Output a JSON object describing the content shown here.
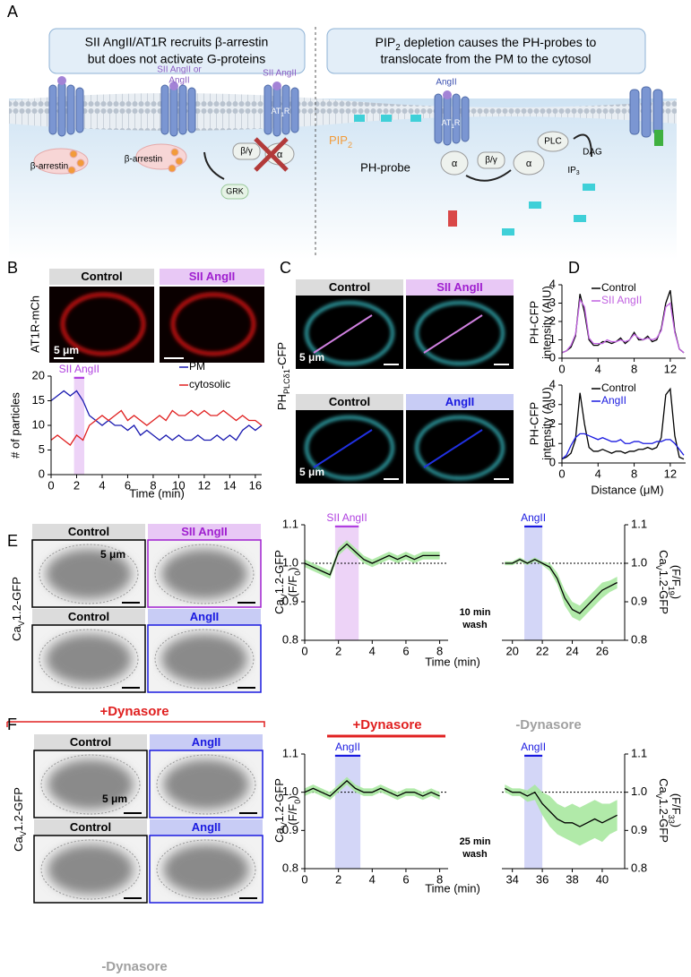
{
  "panel_letters": [
    "A",
    "B",
    "C",
    "D",
    "E",
    "F"
  ],
  "panel_a": {
    "left_title": [
      "SII AngII/AT1R recruits β-arrestin",
      "but does not activate G-proteins"
    ],
    "right_title": [
      [
        {
          "t": "PIP"
        },
        {
          "t": "2",
          "sub": true
        },
        {
          "t": " depletion causes the PH-probes to"
        }
      ],
      "translocate from the PM to the cytosol"
    ],
    "labels": [
      "SII AngII or",
      "AngII",
      "SII AngII",
      [
        {
          "t": "AT"
        },
        {
          "t": "1",
          "sub": true
        },
        {
          "t": "R"
        }
      ],
      [
        {
          "t": "AT"
        },
        {
          "t": "1",
          "sub": true
        },
        {
          "t": "R"
        }
      ],
      "β-arrestin",
      "β-arrestin",
      "GRK",
      "β/γ",
      "α",
      "AngII",
      [
        {
          "t": "PIP"
        },
        {
          "t": "2",
          "sub": true
        }
      ],
      "PH-probe",
      "α",
      "β/γ",
      "α",
      "PLC",
      "DAG",
      [
        {
          "t": "IP"
        },
        {
          "t": "3",
          "sub": true
        }
      ]
    ]
  },
  "panel_b": {
    "headers": [
      "Control",
      "SII AngII"
    ],
    "ylabel": "AT1R-mCh",
    "scale": "5 μm"
  },
  "panel_c": {
    "headers_top": [
      "Control",
      "SII AngII"
    ],
    "headers_bottom": [
      "Control",
      "AngII"
    ],
    "ylabel": [
      {
        "t": "PH"
      },
      {
        "t": "PLCδ1",
        "sub": true
      },
      {
        "t": "-CFP"
      }
    ],
    "scale": [
      "5 μm",
      "5 μm"
    ]
  },
  "panel_e": {
    "headers": [
      "Control",
      "SII AngII",
      "Control",
      "AngII"
    ],
    "ylabel": [
      {
        "t": "Ca"
      },
      {
        "t": "V",
        "sub": true
      },
      {
        "t": "1.2-GFP"
      }
    ],
    "scale": "5 μm",
    "wash": [
      "10 min",
      "wash"
    ],
    "xlabel": "Time (min)"
  },
  "panel_f": {
    "top": "+Dynasore",
    "bottom": "-Dynasore",
    "headers": [
      "Control",
      "AngII",
      "Control",
      "AngII"
    ],
    "ylabel": [
      {
        "t": "Ca"
      },
      {
        "t": "V",
        "sub": true
      },
      {
        "t": "1.2-GFP"
      }
    ],
    "scale": "5 μm",
    "chart_left_label": "+Dynasore",
    "chart_right_label": "-Dynasore",
    "wash": [
      "25 min",
      "wash"
    ],
    "xlabel": "Time (min)"
  },
  "chart_data": [
    {
      "type": "line",
      "xlabel": "Time (min)",
      "ylabel": [
        "# of particles"
      ],
      "annotation": "SII AngII",
      "shade": [
        1.8,
        2.6
      ],
      "shade_color": "#e8c8f5",
      "annotation_color": "#b040e0",
      "x": [
        0,
        0.5,
        1,
        1.5,
        2,
        2.5,
        3,
        3.5,
        4,
        4.5,
        5,
        5.5,
        6,
        6.5,
        7,
        7.5,
        8,
        8.5,
        9,
        9.5,
        10,
        10.5,
        11,
        11.5,
        12,
        12.5,
        13,
        13.5,
        14,
        14.5,
        15,
        15.5,
        16,
        16.5
      ],
      "series": [
        {
          "name": "PM",
          "color": "#1a1ab0",
          "values": [
            15,
            16,
            17,
            16,
            17,
            15,
            12,
            11,
            10,
            11,
            10,
            10,
            9,
            10,
            8,
            9,
            8,
            7,
            8,
            7,
            8,
            7,
            7,
            8,
            7,
            7,
            8,
            7,
            8,
            7,
            9,
            10,
            9,
            10
          ]
        },
        {
          "name": "cytosolic",
          "color": "#e02020",
          "values": [
            7,
            8,
            7,
            6,
            8,
            7,
            10,
            11,
            12,
            11,
            12,
            13,
            11,
            12,
            11,
            10,
            11,
            12,
            11,
            13,
            12,
            12,
            13,
            12,
            13,
            12,
            12,
            13,
            12,
            11,
            12,
            11,
            11,
            10
          ]
        }
      ],
      "xlim": [
        0,
        16.5
      ],
      "xticks": [
        0,
        2,
        4,
        6,
        8,
        10,
        12,
        14,
        16
      ],
      "ylim": [
        0,
        20
      ],
      "yticks": [
        0,
        5,
        10,
        15,
        20
      ]
    },
    {
      "type": "line",
      "ylabel": [
        "PH-CFP",
        "intensity (AIU)"
      ],
      "x": [
        0,
        0.5,
        1,
        1.5,
        2,
        2.5,
        3,
        3.5,
        4,
        4.5,
        5,
        5.5,
        6,
        6.5,
        7,
        7.5,
        8,
        8.5,
        9,
        9.5,
        10,
        10.5,
        11,
        11.5,
        12,
        12.5,
        13,
        13.5
      ],
      "series": [
        {
          "name": "Control",
          "color": "#000000",
          "values": [
            0.3,
            0.4,
            0.6,
            1.2,
            3.5,
            2.5,
            1.0,
            0.7,
            0.7,
            0.9,
            0.9,
            0.8,
            0.9,
            1.1,
            0.8,
            1.0,
            1.4,
            1.0,
            1.0,
            1.2,
            0.9,
            1.0,
            1.6,
            3.0,
            3.7,
            1.5,
            0.5,
            0.3
          ]
        },
        {
          "name": "SII AngII",
          "color": "#c060e0",
          "values": [
            0.3,
            0.4,
            0.7,
            1.3,
            3.2,
            2.8,
            1.1,
            0.8,
            0.8,
            0.8,
            1.0,
            0.9,
            0.9,
            1.0,
            0.9,
            1.0,
            1.3,
            1.1,
            1.0,
            1.1,
            1.0,
            1.1,
            1.5,
            2.8,
            3.0,
            1.4,
            0.5,
            0.3
          ]
        }
      ],
      "xlim": [
        0,
        13.7
      ],
      "xticks": [
        0,
        4,
        8,
        12
      ],
      "ylim": [
        0,
        4
      ],
      "yticks": [
        0,
        1,
        2,
        3,
        4
      ]
    },
    {
      "type": "line",
      "xlabel": "Distance (μM)",
      "ylabel": [
        "PH-CFP",
        "intensity (AIU)"
      ],
      "x": [
        0,
        0.5,
        1,
        1.5,
        2,
        2.5,
        3,
        3.5,
        4,
        4.5,
        5,
        5.5,
        6,
        6.5,
        7,
        7.5,
        8,
        8.5,
        9,
        9.5,
        10,
        10.5,
        11,
        11.5,
        12,
        12.5,
        13,
        13.5
      ],
      "series": [
        {
          "name": "Control",
          "color": "#000000",
          "values": [
            0.2,
            0.3,
            0.5,
            1.2,
            3.6,
            2.0,
            0.8,
            0.6,
            0.6,
            0.7,
            0.6,
            0.5,
            0.6,
            0.6,
            0.5,
            0.6,
            0.6,
            0.7,
            0.7,
            0.8,
            0.7,
            0.8,
            1.3,
            3.5,
            3.8,
            1.4,
            0.3,
            0.2
          ]
        },
        {
          "name": "AngII",
          "color": "#1a1ae0",
          "values": [
            0.2,
            0.4,
            0.9,
            1.3,
            1.5,
            1.5,
            1.4,
            1.3,
            1.2,
            1.3,
            1.2,
            1.1,
            1.1,
            1.2,
            1.0,
            1.0,
            1.1,
            1.1,
            1.0,
            1.0,
            1.0,
            1.1,
            1.1,
            1.2,
            1.2,
            1.0,
            0.7,
            0.4
          ]
        }
      ],
      "xlim": [
        0,
        13.7
      ],
      "xticks": [
        0,
        4,
        8,
        12
      ],
      "ylim": [
        0,
        4
      ],
      "yticks": [
        0,
        1,
        2,
        3,
        4
      ]
    },
    {
      "type": "line",
      "ylabel": [
        [
          {
            "t": "Ca"
          },
          {
            "t": "V",
            "sub": true
          },
          {
            "t": "1.2-GFP"
          }
        ],
        [
          {
            "t": "(F/F"
          },
          {
            "t": "0",
            "sub": true
          },
          {
            "t": ")"
          }
        ]
      ],
      "annotation": "SII AngII",
      "shade": [
        1.8,
        3.2
      ],
      "shade_color": "#e8c8f5",
      "annotation_color": "#b040e0",
      "reference_line": 1,
      "error_color": "#a8e8a0",
      "x": [
        0,
        0.5,
        1,
        1.5,
        2,
        2.5,
        3,
        3.5,
        4,
        4.5,
        5,
        5.5,
        6,
        6.5,
        7,
        7.5,
        8
      ],
      "series": [
        {
          "color": "#000000",
          "values": [
            1.0,
            0.99,
            0.98,
            0.97,
            1.03,
            1.05,
            1.03,
            1.01,
            1.0,
            1.01,
            1.02,
            1.01,
            1.02,
            1.01,
            1.02,
            1.02,
            1.02
          ],
          "errors": [
            0.01,
            0.01,
            0.01,
            0.01,
            0.01,
            0.01,
            0.01,
            0.01,
            0.01,
            0.01,
            0.01,
            0.01,
            0.01,
            0.01,
            0.01,
            0.01,
            0.01
          ]
        }
      ],
      "xlim": [
        0,
        8.5
      ],
      "xticks": [
        0,
        2,
        4,
        6,
        8
      ],
      "ylim": [
        0.8,
        1.1
      ],
      "yticks": [
        0.8,
        0.9,
        {
          "value": 1,
          "label": "1.0"
        },
        1.1
      ],
      "yaxis_side": "left"
    },
    {
      "type": "line",
      "ylabel": [
        [
          {
            "t": "Ca"
          },
          {
            "t": "V",
            "sub": true
          },
          {
            "t": "1.2-GFP"
          }
        ],
        [
          {
            "t": "(F/F"
          },
          {
            "t": "19",
            "sub": true
          },
          {
            "t": ")"
          }
        ]
      ],
      "annotation": "AngII",
      "shade": [
        20.8,
        22
      ],
      "shade_color": "#c8ccf5",
      "annotation_color": "#1a1ae0",
      "reference_line": 1,
      "error_color": "#a8e8a0",
      "x": [
        19.5,
        20,
        20.5,
        21,
        21.5,
        22,
        22.5,
        23,
        23.5,
        24,
        24.5,
        25,
        25.5,
        26,
        26.5,
        27
      ],
      "series": [
        {
          "color": "#000000",
          "values": [
            1.0,
            1.0,
            1.01,
            1.0,
            1.01,
            1.0,
            0.99,
            0.96,
            0.91,
            0.88,
            0.87,
            0.89,
            0.91,
            0.93,
            0.94,
            0.95
          ],
          "errors": [
            0.005,
            0.005,
            0.005,
            0.005,
            0.005,
            0.005,
            0.01,
            0.015,
            0.02,
            0.02,
            0.02,
            0.02,
            0.02,
            0.02,
            0.015,
            0.015
          ]
        }
      ],
      "xlim": [
        19.3,
        27.5
      ],
      "xticks": [
        20,
        22,
        24,
        26
      ],
      "ylim": [
        0.8,
        1.1
      ],
      "yticks": [
        0.8,
        0.9,
        {
          "value": 1,
          "label": "1.0"
        },
        1.1
      ],
      "yaxis_side": "right"
    },
    {
      "type": "line",
      "ylabel": [
        [
          {
            "t": "Ca"
          },
          {
            "t": "V",
            "sub": true
          },
          {
            "t": "1.2-GFP"
          }
        ],
        [
          {
            "t": "(F/F"
          },
          {
            "t": "0",
            "sub": true
          },
          {
            "t": ")"
          }
        ]
      ],
      "annotation": "AngII",
      "shade": [
        1.8,
        3.3
      ],
      "shade_color": "#c8ccf5",
      "annotation_color": "#1a1ae0",
      "reference_line": 1,
      "error_color": "#a8e8a0",
      "x": [
        0,
        0.5,
        1,
        1.5,
        2,
        2.5,
        3,
        3.5,
        4,
        4.5,
        5,
        5.5,
        6,
        6.5,
        7,
        7.5,
        8
      ],
      "series": [
        {
          "color": "#000000",
          "values": [
            1.0,
            1.01,
            1.0,
            0.99,
            1.01,
            1.03,
            1.01,
            1.0,
            1.0,
            1.01,
            1.0,
            0.99,
            1.0,
            1.0,
            0.99,
            1.0,
            0.99
          ],
          "errors": [
            0.01,
            0.01,
            0.01,
            0.01,
            0.01,
            0.01,
            0.01,
            0.01,
            0.01,
            0.01,
            0.01,
            0.01,
            0.01,
            0.01,
            0.01,
            0.01,
            0.01
          ]
        }
      ],
      "xlim": [
        0,
        8.5
      ],
      "xticks": [
        0,
        2,
        4,
        6,
        8
      ],
      "ylim": [
        0.8,
        1.1
      ],
      "yticks": [
        0.8,
        0.9,
        {
          "value": 1,
          "label": "1.0"
        },
        1.1
      ],
      "yaxis_side": "left"
    },
    {
      "type": "line",
      "ylabel": [
        [
          {
            "t": "Ca"
          },
          {
            "t": "V",
            "sub": true
          },
          {
            "t": "1.2-GFP"
          }
        ],
        [
          {
            "t": "(F/F"
          },
          {
            "t": "33",
            "sub": true
          },
          {
            "t": ")"
          }
        ]
      ],
      "annotation": "AngII",
      "shade": [
        34.8,
        36
      ],
      "shade_color": "#c8ccf5",
      "annotation_color": "#1a1ae0",
      "reference_line": 1,
      "error_color": "#a8e8a0",
      "x": [
        33.5,
        34,
        34.5,
        35,
        35.5,
        36,
        36.5,
        37,
        37.5,
        38,
        38.5,
        39,
        39.5,
        40,
        40.5,
        41
      ],
      "series": [
        {
          "color": "#000000",
          "values": [
            1.01,
            1.0,
            1.0,
            0.99,
            1.0,
            0.97,
            0.95,
            0.93,
            0.92,
            0.92,
            0.91,
            0.92,
            0.93,
            0.92,
            0.93,
            0.94
          ],
          "errors": [
            0.01,
            0.01,
            0.01,
            0.015,
            0.02,
            0.03,
            0.04,
            0.04,
            0.04,
            0.05,
            0.05,
            0.05,
            0.05,
            0.05,
            0.04,
            0.04
          ]
        }
      ],
      "xlim": [
        33.3,
        41.5
      ],
      "xticks": [
        34,
        36,
        38,
        40
      ],
      "ylim": [
        0.8,
        1.1
      ],
      "yticks": [
        0.8,
        0.9,
        {
          "value": 1,
          "label": "1.0"
        },
        1.1
      ],
      "yaxis_side": "right"
    }
  ]
}
